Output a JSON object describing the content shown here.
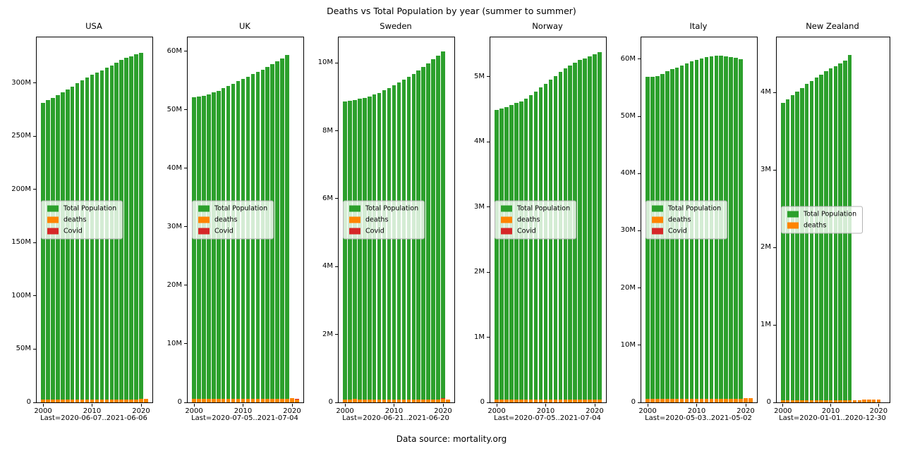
{
  "figure": {
    "title": "Deaths vs Total Population by year (summer to summer)",
    "footer": "Data source: mortality.org"
  },
  "colors": {
    "population": "#2ca02c",
    "deaths": "#ff8400",
    "covid": "#d62728"
  },
  "chart_data": [
    {
      "type": "bar",
      "title": "USA",
      "xlabel": "Last=2020-06-07..2021-06-06",
      "ylabel": "",
      "years": [
        2000,
        2001,
        2002,
        2003,
        2004,
        2005,
        2006,
        2007,
        2008,
        2009,
        2010,
        2011,
        2012,
        2013,
        2014,
        2015,
        2016,
        2017,
        2018,
        2019,
        2020,
        2021
      ],
      "xlim": [
        1998.7,
        2022.3
      ],
      "ylim": [
        0,
        343
      ],
      "xticks": [
        2000,
        2010,
        2020
      ],
      "yticks": [
        {
          "v": 0,
          "label": "0"
        },
        {
          "v": 50,
          "label": "50M"
        },
        {
          "v": 100,
          "label": "100M"
        },
        {
          "v": 150,
          "label": "150M"
        },
        {
          "v": 200,
          "label": "200M"
        },
        {
          "v": 250,
          "label": "250M"
        },
        {
          "v": 300,
          "label": "300M"
        }
      ],
      "unit": "millions",
      "series": [
        {
          "name": "Total Population",
          "color_key": "population",
          "values": [
            281.7,
            284.0,
            286.3,
            288.8,
            291.3,
            294.0,
            296.8,
            299.8,
            302.7,
            305.3,
            307.8,
            310.0,
            312.2,
            314.4,
            316.7,
            319.1,
            321.5,
            323.6,
            325.4,
            327.1,
            328.7,
            null
          ]
        },
        {
          "name": "deaths",
          "color_key": "deaths",
          "values": [
            2.4,
            2.42,
            2.44,
            2.45,
            2.4,
            2.45,
            2.43,
            2.42,
            2.47,
            2.44,
            2.47,
            2.52,
            2.54,
            2.6,
            2.63,
            2.71,
            2.74,
            2.81,
            2.84,
            2.85,
            3.15,
            3.45
          ]
        },
        {
          "name": "Covid",
          "color_key": "covid",
          "stacked_on_prev": true,
          "values": [
            0,
            0,
            0,
            0,
            0,
            0,
            0,
            0,
            0,
            0,
            0,
            0,
            0,
            0,
            0,
            0,
            0,
            0,
            0,
            0,
            0,
            0
          ]
        }
      ],
      "legend": [
        {
          "label": "Total Population",
          "color_key": "population"
        },
        {
          "label": "deaths",
          "color_key": "deaths"
        },
        {
          "label": "Covid",
          "color_key": "covid"
        }
      ]
    },
    {
      "type": "bar",
      "title": "UK",
      "xlabel": "Last=2020-07-05..2021-07-04",
      "ylabel": "",
      "years": [
        2000,
        2001,
        2002,
        2003,
        2004,
        2005,
        2006,
        2007,
        2008,
        2009,
        2010,
        2011,
        2012,
        2013,
        2014,
        2015,
        2016,
        2017,
        2018,
        2019,
        2020,
        2021
      ],
      "xlim": [
        1998.7,
        2022.3
      ],
      "ylim": [
        0,
        62.4
      ],
      "xticks": [
        2000,
        2010,
        2020
      ],
      "yticks": [
        {
          "v": 0,
          "label": "0"
        },
        {
          "v": 10,
          "label": "10M"
        },
        {
          "v": 20,
          "label": "20M"
        },
        {
          "v": 30,
          "label": "30M"
        },
        {
          "v": 40,
          "label": "40M"
        },
        {
          "v": 50,
          "label": "50M"
        },
        {
          "v": 60,
          "label": "60M"
        }
      ],
      "unit": "millions",
      "series": [
        {
          "name": "Total Population",
          "color_key": "population",
          "values": [
            52.15,
            52.3,
            52.45,
            52.65,
            52.95,
            53.3,
            53.7,
            54.1,
            54.5,
            54.9,
            55.3,
            55.7,
            56.1,
            56.5,
            56.9,
            57.35,
            57.8,
            58.3,
            58.8,
            59.35,
            null,
            null
          ]
        },
        {
          "name": "deaths",
          "color_key": "deaths",
          "values": [
            0.61,
            0.6,
            0.61,
            0.61,
            0.59,
            0.58,
            0.57,
            0.57,
            0.58,
            0.56,
            0.56,
            0.55,
            0.57,
            0.58,
            0.57,
            0.6,
            0.6,
            0.61,
            0.62,
            0.6,
            0.69,
            0.5
          ]
        },
        {
          "name": "Covid",
          "color_key": "covid",
          "stacked_on_prev": true,
          "values": [
            0,
            0,
            0,
            0,
            0,
            0,
            0,
            0,
            0,
            0,
            0,
            0,
            0,
            0,
            0,
            0,
            0,
            0,
            0,
            0,
            0,
            0.12
          ]
        }
      ],
      "legend": [
        {
          "label": "Total Population",
          "color_key": "population"
        },
        {
          "label": "deaths",
          "color_key": "deaths"
        },
        {
          "label": "Covid",
          "color_key": "covid"
        }
      ]
    },
    {
      "type": "bar",
      "title": "Sweden",
      "xlabel": "Last=2020-06-21..2021-06-20",
      "ylabel": "",
      "years": [
        2000,
        2001,
        2002,
        2003,
        2004,
        2005,
        2006,
        2007,
        2008,
        2009,
        2010,
        2011,
        2012,
        2013,
        2014,
        2015,
        2016,
        2017,
        2018,
        2019,
        2020,
        2021
      ],
      "xlim": [
        1998.7,
        2022.3
      ],
      "ylim": [
        0,
        10.75
      ],
      "xticks": [
        2000,
        2010,
        2020
      ],
      "yticks": [
        {
          "v": 0,
          "label": "0"
        },
        {
          "v": 2,
          "label": "2M"
        },
        {
          "v": 4,
          "label": "4M"
        },
        {
          "v": 6,
          "label": "6M"
        },
        {
          "v": 8,
          "label": "8M"
        },
        {
          "v": 10,
          "label": "10M"
        }
      ],
      "unit": "millions",
      "series": [
        {
          "name": "Total Population",
          "color_key": "population",
          "values": [
            8.87,
            8.89,
            8.91,
            8.94,
            8.97,
            9.01,
            9.06,
            9.12,
            9.19,
            9.26,
            9.34,
            9.42,
            9.5,
            9.58,
            9.67,
            9.77,
            9.88,
            9.99,
            10.1,
            10.21,
            10.33,
            null
          ]
        },
        {
          "name": "deaths",
          "color_key": "deaths",
          "values": [
            0.093,
            0.093,
            0.094,
            0.092,
            0.09,
            0.091,
            0.091,
            0.091,
            0.091,
            0.09,
            0.09,
            0.089,
            0.091,
            0.09,
            0.089,
            0.091,
            0.091,
            0.092,
            0.092,
            0.089,
            0.097,
            0.092
          ]
        },
        {
          "name": "Covid",
          "color_key": "covid",
          "stacked_on_prev": true,
          "values": [
            0,
            0,
            0,
            0,
            0,
            0,
            0,
            0,
            0,
            0,
            0,
            0,
            0,
            0,
            0,
            0,
            0,
            0,
            0,
            0,
            0.02,
            0
          ]
        }
      ],
      "legend": [
        {
          "label": "Total Population",
          "color_key": "population"
        },
        {
          "label": "deaths",
          "color_key": "deaths"
        },
        {
          "label": "Covid",
          "color_key": "covid"
        }
      ]
    },
    {
      "type": "bar",
      "title": "Norway",
      "xlabel": "Last=2020-07-05..2021-07-04",
      "ylabel": "",
      "years": [
        2000,
        2001,
        2002,
        2003,
        2004,
        2005,
        2006,
        2007,
        2008,
        2009,
        2010,
        2011,
        2012,
        2013,
        2014,
        2015,
        2016,
        2017,
        2018,
        2019,
        2020,
        2021
      ],
      "xlim": [
        1998.7,
        2022.3
      ],
      "ylim": [
        0,
        5.6
      ],
      "xticks": [
        2000,
        2010,
        2020
      ],
      "yticks": [
        {
          "v": 0,
          "label": "0"
        },
        {
          "v": 1,
          "label": "1M"
        },
        {
          "v": 2,
          "label": "2M"
        },
        {
          "v": 3,
          "label": "3M"
        },
        {
          "v": 4,
          "label": "4M"
        },
        {
          "v": 5,
          "label": "5M"
        }
      ],
      "unit": "millions",
      "series": [
        {
          "name": "Total Population",
          "color_key": "population",
          "values": [
            4.49,
            4.51,
            4.53,
            4.56,
            4.59,
            4.62,
            4.66,
            4.71,
            4.77,
            4.83,
            4.89,
            4.95,
            5.01,
            5.07,
            5.12,
            5.17,
            5.21,
            5.25,
            5.28,
            5.31,
            5.34,
            5.37
          ]
        },
        {
          "name": "deaths",
          "color_key": "deaths",
          "values": [
            0.044,
            0.044,
            0.044,
            0.042,
            0.041,
            0.041,
            0.041,
            0.042,
            0.041,
            0.041,
            0.041,
            0.041,
            0.042,
            0.041,
            0.04,
            0.04,
            0.041,
            0.04,
            0.041,
            0.04,
            0.041,
            0.042
          ]
        },
        {
          "name": "Covid",
          "color_key": "covid",
          "stacked_on_prev": true,
          "values": [
            0,
            0,
            0,
            0,
            0,
            0,
            0,
            0,
            0,
            0,
            0,
            0,
            0,
            0,
            0,
            0,
            0,
            0,
            0,
            0,
            0,
            0
          ]
        }
      ],
      "legend": [
        {
          "label": "Total Population",
          "color_key": "population"
        },
        {
          "label": "deaths",
          "color_key": "deaths"
        },
        {
          "label": "Covid",
          "color_key": "covid"
        }
      ]
    },
    {
      "type": "bar",
      "title": "Italy",
      "xlabel": "Last=2020-05-03..2021-05-02",
      "ylabel": "",
      "years": [
        2000,
        2001,
        2002,
        2003,
        2004,
        2005,
        2006,
        2007,
        2008,
        2009,
        2010,
        2011,
        2012,
        2013,
        2014,
        2015,
        2016,
        2017,
        2018,
        2019,
        2020,
        2021
      ],
      "xlim": [
        1998.7,
        2022.3
      ],
      "ylim": [
        0,
        63.8
      ],
      "xticks": [
        2000,
        2010,
        2020
      ],
      "yticks": [
        {
          "v": 0,
          "label": "0"
        },
        {
          "v": 10,
          "label": "10M"
        },
        {
          "v": 20,
          "label": "20M"
        },
        {
          "v": 30,
          "label": "30M"
        },
        {
          "v": 40,
          "label": "40M"
        },
        {
          "v": 50,
          "label": "50M"
        },
        {
          "v": 60,
          "label": "60M"
        }
      ],
      "unit": "millions",
      "series": [
        {
          "name": "Total Population",
          "color_key": "population",
          "values": [
            56.9,
            56.95,
            57.05,
            57.35,
            57.85,
            58.25,
            58.55,
            58.85,
            59.25,
            59.65,
            59.9,
            60.1,
            60.3,
            60.5,
            60.6,
            60.55,
            60.45,
            60.35,
            60.2,
            59.95,
            null,
            null
          ]
        },
        {
          "name": "deaths",
          "color_key": "deaths",
          "values": [
            0.57,
            0.56,
            0.57,
            0.59,
            0.56,
            0.57,
            0.56,
            0.57,
            0.58,
            0.59,
            0.59,
            0.59,
            0.61,
            0.6,
            0.6,
            0.65,
            0.62,
            0.65,
            0.63,
            0.63,
            0.74,
            0.76
          ]
        },
        {
          "name": "Covid",
          "color_key": "covid",
          "stacked_on_prev": true,
          "values": [
            0,
            0,
            0,
            0,
            0,
            0,
            0,
            0,
            0,
            0,
            0,
            0,
            0,
            0,
            0,
            0,
            0,
            0,
            0,
            0,
            0,
            0
          ]
        }
      ],
      "legend": [
        {
          "label": "Total Population",
          "color_key": "population"
        },
        {
          "label": "deaths",
          "color_key": "deaths"
        },
        {
          "label": "Covid",
          "color_key": "covid"
        }
      ]
    },
    {
      "type": "bar",
      "title": "New Zealand",
      "xlabel": "Last=2020-01-01..2020-12-30",
      "ylabel": "",
      "years": [
        2000,
        2001,
        2002,
        2003,
        2004,
        2005,
        2006,
        2007,
        2008,
        2009,
        2010,
        2011,
        2012,
        2013,
        2014,
        2015,
        2016,
        2017,
        2018,
        2019,
        2020,
        2021
      ],
      "xlim": [
        1998.7,
        2022.3
      ],
      "ylim": [
        0,
        4.71
      ],
      "xticks": [
        2000,
        2010,
        2020
      ],
      "yticks": [
        {
          "v": 0,
          "label": "0"
        },
        {
          "v": 1,
          "label": "1M"
        },
        {
          "v": 2,
          "label": "2M"
        },
        {
          "v": 3,
          "label": "3M"
        },
        {
          "v": 4,
          "label": "4M"
        }
      ],
      "unit": "millions",
      "series": [
        {
          "name": "Total Population",
          "color_key": "population",
          "values": [
            3.86,
            3.91,
            3.96,
            4.01,
            4.06,
            4.11,
            4.15,
            4.19,
            4.23,
            4.27,
            4.31,
            4.34,
            4.37,
            4.41,
            4.48,
            null,
            null,
            null,
            null,
            null,
            null,
            null
          ]
        },
        {
          "name": "deaths",
          "color_key": "deaths",
          "values": [
            0.027,
            0.027,
            0.028,
            0.028,
            0.028,
            0.027,
            0.028,
            0.028,
            0.029,
            0.029,
            0.028,
            0.03,
            0.03,
            0.03,
            0.031,
            0.031,
            0.031,
            0.032,
            0.033,
            0.033,
            0.034,
            null
          ]
        }
      ],
      "legend": [
        {
          "label": "Total Population",
          "color_key": "population"
        },
        {
          "label": "deaths",
          "color_key": "deaths"
        }
      ]
    }
  ]
}
